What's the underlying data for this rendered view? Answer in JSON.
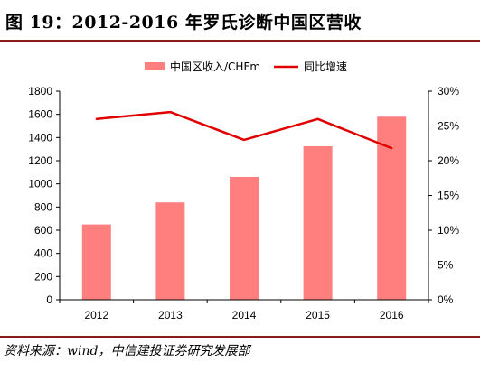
{
  "figure": {
    "title": "图 19：2012-2016 年罗氏诊断中国区营收",
    "source": "资料来源：wind，中信建投证券研究发展部"
  },
  "chart_data": {
    "type": "bar",
    "categories": [
      "2012",
      "2013",
      "2014",
      "2015",
      "2016"
    ],
    "series": [
      {
        "name": "中国区收入/CHFm",
        "kind": "bar",
        "axis": "left",
        "color": "#ff7f7f",
        "values": [
          650,
          840,
          1060,
          1325,
          1580
        ]
      },
      {
        "name": "同比增速",
        "kind": "line",
        "axis": "right",
        "color": "#e00000",
        "values": [
          26.0,
          27.0,
          23.0,
          26.0,
          21.8
        ]
      }
    ],
    "y_left": {
      "min": 0,
      "max": 1800,
      "step": 200,
      "tick_labels": [
        "0",
        "200",
        "400",
        "600",
        "800",
        "1000",
        "1200",
        "1400",
        "1600",
        "1800"
      ]
    },
    "y_right": {
      "min": 0,
      "max": 30,
      "step": 5,
      "tick_labels": [
        "0%",
        "5%",
        "10%",
        "15%",
        "20%",
        "25%",
        "30%"
      ]
    },
    "legend_position": "top-center",
    "grid": false
  }
}
